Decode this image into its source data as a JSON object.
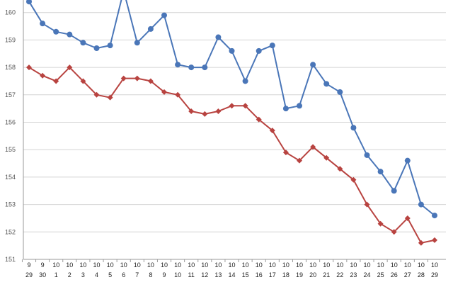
{
  "chart_data": {
    "type": "line",
    "categories": [
      {
        "month": "9",
        "day": "29"
      },
      {
        "month": "9",
        "day": "30"
      },
      {
        "month": "10",
        "day": "1"
      },
      {
        "month": "10",
        "day": "2"
      },
      {
        "month": "10",
        "day": "3"
      },
      {
        "month": "10",
        "day": "4"
      },
      {
        "month": "10",
        "day": "5"
      },
      {
        "month": "10",
        "day": "6"
      },
      {
        "month": "10",
        "day": "7"
      },
      {
        "month": "10",
        "day": "8"
      },
      {
        "month": "10",
        "day": "9"
      },
      {
        "month": "10",
        "day": "10"
      },
      {
        "month": "10",
        "day": "11"
      },
      {
        "month": "10",
        "day": "12"
      },
      {
        "month": "10",
        "day": "13"
      },
      {
        "month": "10",
        "day": "14"
      },
      {
        "month": "10",
        "day": "15"
      },
      {
        "month": "10",
        "day": "16"
      },
      {
        "month": "10",
        "day": "17"
      },
      {
        "month": "10",
        "day": "18"
      },
      {
        "month": "10",
        "day": "19"
      },
      {
        "month": "10",
        "day": "20"
      },
      {
        "month": "10",
        "day": "21"
      },
      {
        "month": "10",
        "day": "22"
      },
      {
        "month": "10",
        "day": "23"
      },
      {
        "month": "10",
        "day": "24"
      },
      {
        "month": "10",
        "day": "25"
      },
      {
        "month": "10",
        "day": "26"
      },
      {
        "month": "10",
        "day": "27"
      },
      {
        "month": "10",
        "day": "28"
      },
      {
        "month": "10",
        "day": "29"
      }
    ],
    "series": [
      {
        "color": "#4a76b8",
        "marker": "circle",
        "values": [
          160.4,
          159.6,
          159.3,
          159.2,
          158.9,
          158.7,
          158.8,
          160.8,
          158.9,
          159.4,
          159.9,
          158.1,
          158.0,
          158.0,
          159.1,
          158.6,
          157.5,
          158.6,
          158.8,
          156.5,
          156.6,
          158.1,
          157.4,
          157.1,
          155.8,
          154.8,
          154.2,
          153.5,
          154.6,
          153.0,
          152.6
        ]
      },
      {
        "color": "#b84340",
        "marker": "diamond",
        "values": [
          158.0,
          157.7,
          157.5,
          158.0,
          157.5,
          157.0,
          156.9,
          157.6,
          157.6,
          157.5,
          157.1,
          157.0,
          156.4,
          156.3,
          156.4,
          156.6,
          156.6,
          156.1,
          155.7,
          154.9,
          154.6,
          155.1,
          154.7,
          154.3,
          153.9,
          153.0,
          152.3,
          152.0,
          152.5,
          151.6,
          151.7
        ]
      }
    ],
    "yticks": [
      "151",
      "152",
      "153",
      "154",
      "155",
      "156",
      "157",
      "158",
      "159",
      "160"
    ],
    "ylim": [
      151,
      160.4
    ],
    "grid": true
  }
}
